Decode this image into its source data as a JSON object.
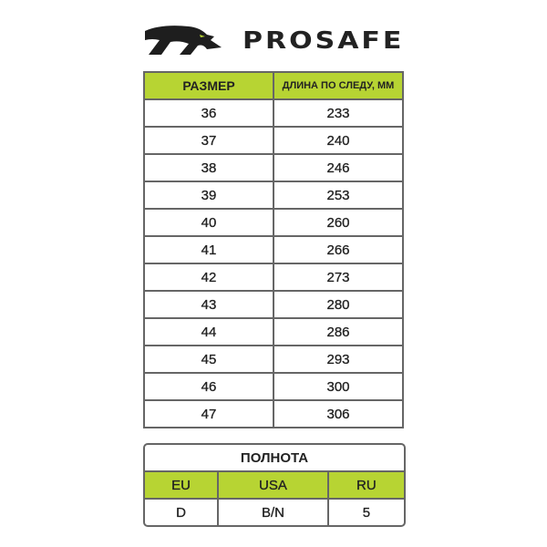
{
  "brand": {
    "name": "PROSAFE",
    "accent": "#b7d433"
  },
  "size_table": {
    "headers": [
      "РАЗМЕР",
      "ДЛИНА ПО СЛЕДУ, ММ"
    ],
    "rows": [
      [
        "36",
        "233"
      ],
      [
        "37",
        "240"
      ],
      [
        "38",
        "246"
      ],
      [
        "39",
        "253"
      ],
      [
        "40",
        "260"
      ],
      [
        "41",
        "266"
      ],
      [
        "42",
        "273"
      ],
      [
        "43",
        "280"
      ],
      [
        "44",
        "286"
      ],
      [
        "45",
        "293"
      ],
      [
        "46",
        "300"
      ],
      [
        "47",
        "306"
      ]
    ]
  },
  "width_table": {
    "title": "ПОЛНОТА",
    "headers": [
      "EU",
      "USA",
      "RU"
    ],
    "values": [
      "D",
      "B/N",
      "5"
    ]
  }
}
